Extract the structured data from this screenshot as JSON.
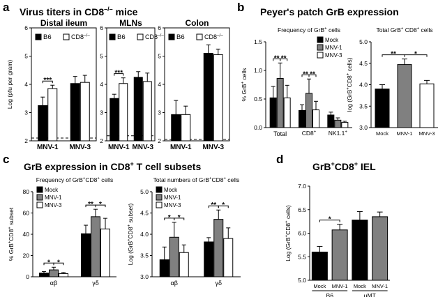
{
  "panel_letters": [
    "a",
    "b",
    "c",
    "d"
  ],
  "titles": {
    "a": "Virus titers in CD8",
    "a_sup": "–/–",
    "a_tail": " mice",
    "b": "Peyer's patch GrB expression",
    "c_pre": "GrB expression in CD8",
    "c_sup": "+",
    "c_post": " T cell subsets",
    "d_1": "GrB",
    "d_sup1": "+",
    "d_2": "CD8",
    "d_sup2": "+",
    "d_3": " IEL"
  },
  "colors": {
    "black": "#000000",
    "gray": "#808080",
    "white": "#ffffff"
  },
  "chart_data": [
    {
      "id": "a1",
      "type": "bar",
      "panel": "a",
      "title": "Distal ileum",
      "ylabel": "Log (pfu per gram)",
      "ylim": [
        2,
        6
      ],
      "yticks": [
        2,
        3,
        4,
        5,
        6
      ],
      "categories": [
        "MNV-1",
        "MNV-3"
      ],
      "legend": [
        {
          "label": "B6",
          "color": "#000000"
        },
        {
          "label": "CD8",
          "sup": "–/–",
          "color": "#ffffff"
        }
      ],
      "series": [
        {
          "name": "B6",
          "color": "#000000",
          "values": [
            3.25,
            4.03
          ],
          "errors": [
            0.3,
            0.25
          ]
        },
        {
          "name": "CD8–/–",
          "color": "#ffffff",
          "values": [
            3.85,
            4.07
          ],
          "errors": [
            0.12,
            0.25
          ]
        }
      ],
      "dashed_line": 2.1,
      "annotations": [
        {
          "text": "***",
          "category": 0,
          "from": 0,
          "to": 1
        }
      ]
    },
    {
      "id": "a2",
      "type": "bar",
      "panel": "a",
      "title": "MLNs",
      "ylim": [
        2,
        6
      ],
      "yticks": [
        2,
        3,
        4,
        5,
        6
      ],
      "categories": [
        "MNV-1",
        "MNV-3"
      ],
      "legend": [
        {
          "label": "B6",
          "color": "#000000"
        },
        {
          "label": "CD8",
          "sup": "–/–",
          "color": "#ffffff"
        }
      ],
      "series": [
        {
          "name": "B6",
          "color": "#000000",
          "values": [
            3.5,
            4.25
          ],
          "errors": [
            0.15,
            0.2
          ]
        },
        {
          "name": "CD8–/–",
          "color": "#ffffff",
          "values": [
            4.03,
            4.1
          ],
          "errors": [
            0.2,
            0.3
          ]
        }
      ],
      "dashed_line": 2.18,
      "annotations": [
        {
          "text": "***",
          "category": 0,
          "from": 0,
          "to": 1
        }
      ]
    },
    {
      "id": "a3",
      "type": "bar",
      "panel": "a",
      "title": "Colon",
      "ylim": [
        2,
        6
      ],
      "yticks": [
        2,
        3,
        4,
        5,
        6
      ],
      "categories": [
        "MNV-1",
        "MNV-3"
      ],
      "legend": [
        {
          "label": "B6",
          "color": "#000000"
        },
        {
          "label": "CD8",
          "sup": "–/–",
          "color": "#ffffff"
        }
      ],
      "series": [
        {
          "name": "B6",
          "color": "#000000",
          "values": [
            2.93,
            5.1
          ],
          "errors": [
            0.5,
            0.3
          ]
        },
        {
          "name": "CD8–/–",
          "color": "#ffffff",
          "values": [
            2.93,
            5.05
          ],
          "errors": [
            0.3,
            0.2
          ]
        }
      ],
      "dashed_line": 2.05,
      "annotations": []
    },
    {
      "id": "b1",
      "type": "bar",
      "panel": "b",
      "title": "Frequency of GrB",
      "title_sup": "+",
      "title_tail": " cells",
      "ylabel": "% GrB",
      "ylabel_sup": "+",
      "ylabel_tail": " cells",
      "ylim": [
        0,
        1.5
      ],
      "yticks": [
        0,
        0.5,
        1.0,
        1.5
      ],
      "categories": [
        "Total",
        "CD8",
        "NK1.1"
      ],
      "category_sups": [
        "",
        "+",
        "+"
      ],
      "legend": [
        {
          "label": "Mock",
          "color": "#000000"
        },
        {
          "label": "MNV-1",
          "color": "#808080"
        },
        {
          "label": "MNV-3",
          "color": "#ffffff"
        }
      ],
      "series": [
        {
          "name": "Mock",
          "color": "#000000",
          "values": [
            0.52,
            0.3,
            0.22
          ],
          "errors": [
            0.2,
            0.1,
            0.05
          ]
        },
        {
          "name": "MNV-1",
          "color": "#808080",
          "values": [
            0.86,
            0.6,
            0.13
          ],
          "errors": [
            0.27,
            0.25,
            0.04
          ]
        },
        {
          "name": "MNV-3",
          "color": "#ffffff",
          "values": [
            0.52,
            0.31,
            0.09
          ],
          "errors": [
            0.22,
            0.15,
            0.02
          ]
        }
      ],
      "annotations": [
        {
          "text": "**",
          "category": 0,
          "from": 0,
          "to": 1
        },
        {
          "text": "**",
          "category": 0,
          "from": 1,
          "to": 2
        },
        {
          "text": "**",
          "category": 1,
          "from": 0,
          "to": 1
        },
        {
          "text": "**",
          "category": 1,
          "from": 1,
          "to": 2
        }
      ]
    },
    {
      "id": "b2",
      "type": "bar",
      "panel": "b",
      "title": "Total GrB",
      "title_sup": "+",
      "title_tail": " CD8",
      "title_sup2": "+",
      "title_tail2": " cells",
      "ylabel": "log (GrB",
      "ylabel_sup": "+",
      "ylabel_tail": "CD8",
      "ylabel_sup2": "+",
      "ylabel_tail2": " cells)",
      "ylim": [
        3.0,
        5.0
      ],
      "yticks": [
        3.0,
        3.5,
        4.0,
        4.5,
        5.0
      ],
      "categories": [
        "Mock",
        "MNV-1",
        "MNV-3"
      ],
      "single_series": true,
      "series": [
        {
          "name": "",
          "colors": [
            "#000000",
            "#808080",
            "#ffffff"
          ],
          "values": [
            3.9,
            4.47,
            4.02
          ],
          "errors": [
            0.1,
            0.13,
            0.08
          ]
        }
      ],
      "annotations": [
        {
          "text": "**",
          "from": 0,
          "to": 1
        },
        {
          "text": "*",
          "from": 1,
          "to": 2
        }
      ]
    },
    {
      "id": "c1",
      "type": "bar",
      "panel": "c",
      "title": "Frequency of GrB",
      "title_sup": "+",
      "title_tail": "CD8",
      "title_sup2": "+",
      "title_tail2": " cells",
      "ylabel": "% GrB",
      "ylabel_sup": "+",
      "ylabel_tail": "CD8",
      "ylabel_sup2": "+",
      "ylabel_tail2": " subset",
      "ylim": [
        0,
        80
      ],
      "yticks": [
        0,
        20,
        40,
        60,
        80
      ],
      "categories": [
        "αβ",
        "γδ"
      ],
      "legend": [
        {
          "label": "Mock",
          "color": "#000000"
        },
        {
          "label": "MNV-1",
          "color": "#808080"
        },
        {
          "label": "MNV-3",
          "color": "#ffffff"
        }
      ],
      "series": [
        {
          "name": "Mock",
          "color": "#000000",
          "values": [
            3.5,
            40.5
          ],
          "errors": [
            1.5,
            8
          ]
        },
        {
          "name": "MNV-1",
          "color": "#808080",
          "values": [
            6.5,
            56.5
          ],
          "errors": [
            2.5,
            7
          ]
        },
        {
          "name": "MNV-3",
          "color": "#ffffff",
          "values": [
            3.0,
            45
          ],
          "errors": [
            1,
            10
          ]
        }
      ],
      "annotations": [
        {
          "text": "*",
          "category": 0,
          "from": 0,
          "to": 1
        },
        {
          "text": "*",
          "category": 0,
          "from": 1,
          "to": 2
        },
        {
          "text": "**",
          "category": 1,
          "from": 0,
          "to": 1
        },
        {
          "text": "*",
          "category": 1,
          "from": 1,
          "to": 2
        }
      ]
    },
    {
      "id": "c2",
      "type": "bar",
      "panel": "c",
      "title": "Total numbers of GrB",
      "title_sup": "+",
      "title_tail": "CD8",
      "title_sup2": "+",
      "title_tail2": " cells",
      "ylabel": "Log (GrB",
      "ylabel_sup": "+",
      "ylabel_tail": "CD8",
      "ylabel_sup2": "+",
      "ylabel_tail2": " subset)",
      "ylim": [
        3.0,
        5.0
      ],
      "yticks": [
        3.0,
        3.5,
        4.0,
        4.5,
        5.0
      ],
      "categories": [
        "αβ",
        "γδ"
      ],
      "legend": [
        {
          "label": "Mock",
          "color": "#000000"
        },
        {
          "label": "MNV-1",
          "color": "#808080"
        },
        {
          "label": "MNV-3",
          "color": "#ffffff"
        }
      ],
      "series": [
        {
          "name": "Mock",
          "color": "#000000",
          "values": [
            3.4,
            3.82
          ],
          "errors": [
            0.3,
            0.1
          ]
        },
        {
          "name": "MNV-1",
          "color": "#808080",
          "values": [
            3.93,
            4.35
          ],
          "errors": [
            0.35,
            0.22
          ]
        },
        {
          "name": "MNV-3",
          "color": "#ffffff",
          "values": [
            3.57,
            3.9
          ],
          "errors": [
            0.18,
            0.25
          ]
        }
      ],
      "annotations": [
        {
          "text": "*",
          "category": 0,
          "from": 0,
          "to": 1
        },
        {
          "text": "*",
          "category": 0,
          "from": 1,
          "to": 2
        },
        {
          "text": "**",
          "category": 1,
          "from": 0,
          "to": 1
        },
        {
          "text": "*",
          "category": 1,
          "from": 1,
          "to": 2
        }
      ]
    },
    {
      "id": "d1",
      "type": "bar",
      "panel": "d",
      "ylabel": "Log (GrB",
      "ylabel_sup": "+",
      "ylabel_tail": "CD8",
      "ylabel_sup2": "+",
      "ylabel_tail2": " cells)",
      "ylim": [
        5.0,
        7.0
      ],
      "yticks": [
        5.0,
        5.5,
        6.0,
        6.5,
        7.0
      ],
      "categories": [
        "Mock",
        "MNV-1",
        "Mock",
        "MNV-1"
      ],
      "groups": [
        {
          "label": "B6",
          "from": 0,
          "to": 1
        },
        {
          "label": "μMT",
          "from": 2,
          "to": 3
        }
      ],
      "single_series": true,
      "series": [
        {
          "name": "",
          "colors": [
            "#000000",
            "#808080",
            "#000000",
            "#808080"
          ],
          "values": [
            5.6,
            6.07,
            6.28,
            6.35
          ],
          "errors": [
            0.12,
            0.12,
            0.18,
            0.1
          ]
        }
      ],
      "annotations": [
        {
          "text": "*",
          "from": 0,
          "to": 1
        }
      ]
    }
  ]
}
